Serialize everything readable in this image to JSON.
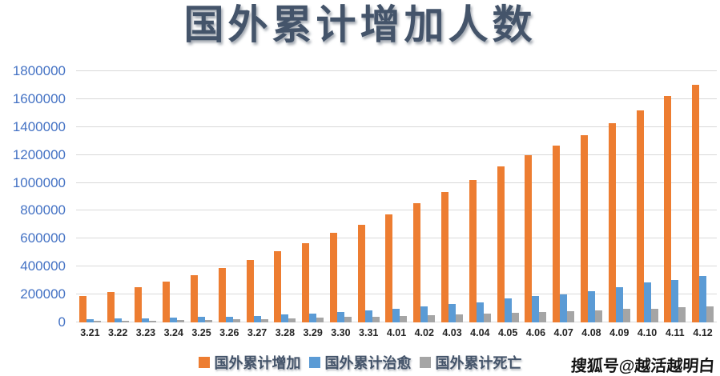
{
  "title": "国外累计增加人数",
  "watermark": "搜狐号@越活越明白",
  "colors": {
    "bar_increase": "#ED7D31",
    "bar_cured": "#5B9BD5",
    "bar_death": "#A5A5A5",
    "title_text": "#44546A",
    "y_tick_text": "#4472C4",
    "x_tick_text": "#262626",
    "gridline": "#D9D9D9",
    "legend_text": "#44546A",
    "watermark_text": "#141414"
  },
  "chart_data": {
    "type": "bar",
    "title": "国外累计增加人数",
    "categories": [
      "3.21",
      "3.22",
      "3.23",
      "3.24",
      "3.25",
      "3.26",
      "3.27",
      "3.28",
      "3.29",
      "3.30",
      "3.31",
      "4.01",
      "4.02",
      "4.03",
      "4.04",
      "4.05",
      "4.06",
      "4.07",
      "4.08",
      "4.09",
      "4.10",
      "4.11",
      "4.12"
    ],
    "series": [
      {
        "key": "increase",
        "name": "国外累计增加",
        "color": "#ED7D31",
        "values": [
          190000,
          220000,
          255000,
          295000,
          340000,
          390000,
          445000,
          510000,
          570000,
          640000,
          700000,
          775000,
          855000,
          935000,
          1020000,
          1120000,
          1200000,
          1265000,
          1340000,
          1430000,
          1520000,
          1620000,
          1700000
        ]
      },
      {
        "key": "cured",
        "name": "国外累计治愈",
        "color": "#5B9BD5",
        "values": [
          25000,
          28000,
          31000,
          35000,
          38000,
          43000,
          48000,
          55000,
          65000,
          75000,
          85000,
          100000,
          115000,
          130000,
          145000,
          170000,
          190000,
          200000,
          225000,
          250000,
          285000,
          305000,
          330000
        ]
      },
      {
        "key": "death",
        "name": "国外累计死亡",
        "color": "#A5A5A5",
        "values": [
          9000,
          11000,
          13000,
          16000,
          18000,
          21000,
          24000,
          28000,
          33000,
          38000,
          43000,
          48000,
          53000,
          58000,
          63000,
          68000,
          74000,
          80000,
          88000,
          95000,
          100000,
          107000,
          114000
        ]
      }
    ],
    "ylim": [
      0,
      1800000
    ],
    "yticks": [
      0,
      200000,
      400000,
      600000,
      800000,
      1000000,
      1200000,
      1400000,
      1600000,
      1800000
    ],
    "grid": true,
    "legend_position": "bottom",
    "xlabel": "",
    "ylabel": ""
  }
}
